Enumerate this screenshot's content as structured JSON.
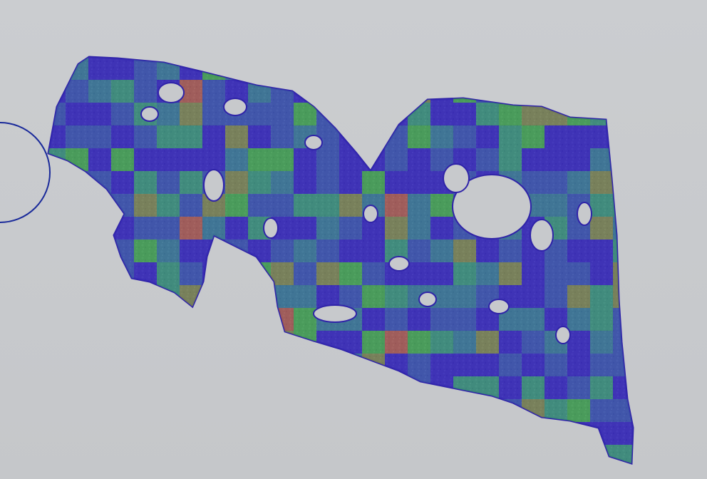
{
  "image": {
    "background_color": "#c7c9cc",
    "tissue_color": "#4a3fb0",
    "outline_color": "#2f23a8",
    "heatmap_palette": [
      "#3b2fb8",
      "#3f5fa8",
      "#3d8a8a",
      "#3fa96a",
      "#4bbf3a",
      "#8a9a3a",
      "#c06a3a"
    ],
    "annotation": {
      "shape": "circle",
      "color": "#1a2a9a"
    }
  }
}
